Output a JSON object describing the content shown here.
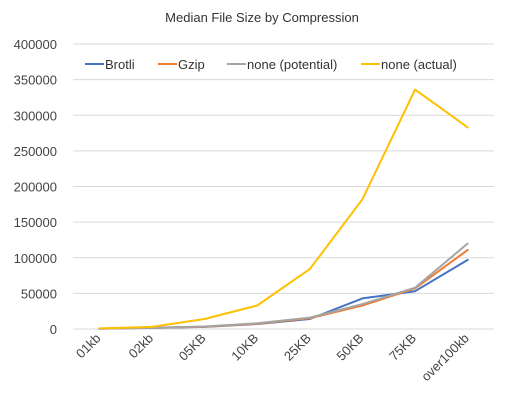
{
  "chart_data": {
    "type": "line",
    "title": "Median File Size by Compression",
    "xlabel": "",
    "ylabel": "",
    "categories": [
      "01kb",
      "02kb",
      "05KB",
      "10KB",
      "25KB",
      "50KB",
      "75KB",
      "over100kb"
    ],
    "ylim": [
      0,
      400000
    ],
    "yticks": [
      0,
      50000,
      100000,
      150000,
      200000,
      250000,
      300000,
      350000,
      400000
    ],
    "grid": true,
    "legend_position": "top",
    "series": [
      {
        "name": "Brotli",
        "color": "#4472C4",
        "values": [
          400,
          1500,
          3000,
          7000,
          14000,
          43000,
          53000,
          97000
        ]
      },
      {
        "name": "Gzip",
        "color": "#ED7D31",
        "values": [
          500,
          1700,
          3200,
          7500,
          15000,
          33000,
          57000,
          111000
        ]
      },
      {
        "name": "none (potential)",
        "color": "#A5A5A5",
        "values": [
          600,
          1800,
          3500,
          8000,
          16000,
          35000,
          58000,
          120000
        ]
      },
      {
        "name": "none (actual)",
        "color": "#FFC000",
        "values": [
          900,
          3000,
          14000,
          33000,
          84000,
          182000,
          336000,
          283000
        ]
      }
    ]
  }
}
